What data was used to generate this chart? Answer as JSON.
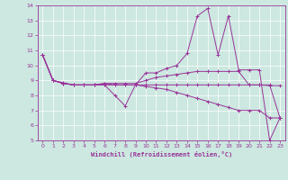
{
  "xlabel": "Windchill (Refroidissement éolien,°C)",
  "xlim": [
    -0.5,
    23.5
  ],
  "ylim": [
    5,
    14
  ],
  "xticks": [
    0,
    1,
    2,
    3,
    4,
    5,
    6,
    7,
    8,
    9,
    10,
    11,
    12,
    13,
    14,
    15,
    16,
    17,
    18,
    19,
    20,
    21,
    22,
    23
  ],
  "yticks": [
    5,
    6,
    7,
    8,
    9,
    10,
    11,
    12,
    13,
    14
  ],
  "bg_color": "#cce8e0",
  "line_color": "#993399",
  "grid_color": "#ffffff",
  "series": [
    [
      10.7,
      9.0,
      8.8,
      8.7,
      8.7,
      8.7,
      8.7,
      8.0,
      7.3,
      8.7,
      9.5,
      9.5,
      9.8,
      10.0,
      10.8,
      13.3,
      13.8,
      10.7,
      13.3,
      9.7,
      9.7,
      9.7,
      5.0,
      6.5
    ],
    [
      10.7,
      9.0,
      8.8,
      8.7,
      8.7,
      8.7,
      8.8,
      8.8,
      8.8,
      8.8,
      9.0,
      9.2,
      9.3,
      9.4,
      9.5,
      9.6,
      9.6,
      9.6,
      9.6,
      9.6,
      8.7,
      8.7,
      8.7,
      6.5
    ],
    [
      10.7,
      9.0,
      8.8,
      8.7,
      8.7,
      8.7,
      8.8,
      8.7,
      8.7,
      8.7,
      8.6,
      8.5,
      8.4,
      8.2,
      8.0,
      7.8,
      7.6,
      7.4,
      7.2,
      7.0,
      7.0,
      7.0,
      6.5,
      6.5
    ],
    [
      10.7,
      9.0,
      8.85,
      8.7,
      8.7,
      8.7,
      8.7,
      8.7,
      8.7,
      8.7,
      8.7,
      8.7,
      8.7,
      8.7,
      8.7,
      8.7,
      8.7,
      8.7,
      8.7,
      8.7,
      8.7,
      8.7,
      8.65,
      8.65
    ]
  ]
}
